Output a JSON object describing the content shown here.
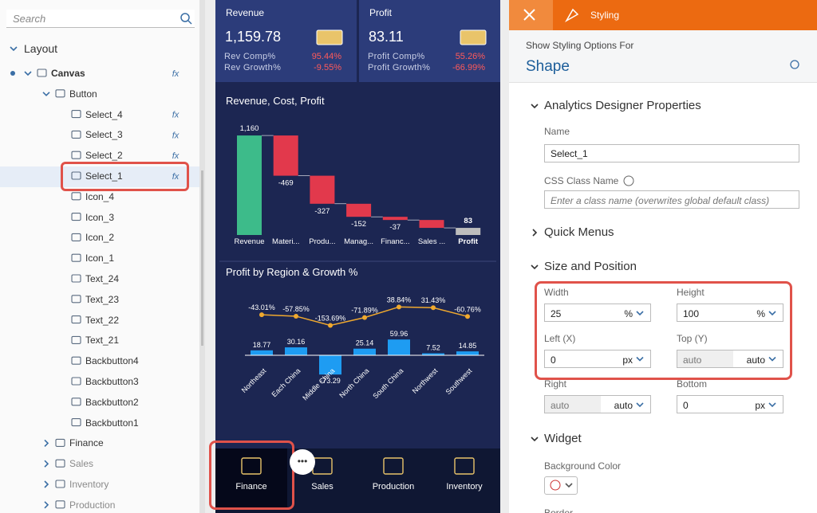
{
  "search": {
    "placeholder": "Search"
  },
  "outline": {
    "title": "Layout",
    "items": [
      "Canvas",
      "Button",
      "Select_4",
      "Select_3",
      "Select_2",
      "Select_1",
      "Icon_4",
      "Icon_3",
      "Icon_2",
      "Icon_1",
      "Text_24",
      "Text_23",
      "Text_22",
      "Text_21",
      "Backbutton4",
      "Backbutton3",
      "Backbutton2",
      "Backbutton1",
      "Finance",
      "Sales",
      "Inventory",
      "Production"
    ]
  },
  "app": {
    "kpis": [
      {
        "title": "Revenue",
        "value": "1,159.78",
        "rows": [
          [
            "Rev Comp%",
            "95.44%"
          ],
          [
            "Rev Growth%",
            "-9.55%"
          ]
        ]
      },
      {
        "title": "Profit",
        "value": "83.11",
        "rows": [
          [
            "Profit Comp%",
            "55.26%"
          ],
          [
            "Profit Growth%",
            "-66.99%"
          ]
        ]
      }
    ],
    "charts": [
      {
        "type": "waterfall",
        "title": "Revenue, Cost, Profit",
        "categories": [
          "Revenue",
          "Materi...",
          "Produ...",
          "Manag...",
          "Financ...",
          "Sales ...",
          "Profit"
        ],
        "values": [
          1160,
          -469,
          -327,
          -152,
          -37,
          -92,
          83
        ],
        "value_labels": [
          "1,160",
          "-469",
          "-327",
          "-152",
          "-37",
          null,
          "83"
        ],
        "ylim": [
          0,
          1300
        ],
        "color_start": "#3dbb8a",
        "color_decrease": "#e2394c",
        "color_end": "#bdbdbd"
      },
      {
        "type": "bar_line",
        "title": "Profit by Region & Growth %",
        "categories": [
          "Northeast",
          "Each China",
          "Middle China",
          "North China",
          "South China",
          "Northwest",
          "Southwest"
        ],
        "ylim": [
          -100,
          100
        ],
        "y2lim": [
          -200,
          100
        ],
        "series": [
          {
            "type": "bar",
            "color": "#1e9cf2",
            "values": [
              18.77,
              30.16,
              -73.29,
              25.14,
              59.96,
              7.52,
              14.85
            ]
          },
          {
            "type": "line",
            "axis": "y2",
            "color": "#f0a92e",
            "values": [
              -43.01,
              -57.85,
              -153.69,
              -71.89,
              38.84,
              31.43,
              -60.76
            ],
            "value_labels": [
              "-43.01%",
              "-57.85%",
              "-153.69%",
              "-71.89%",
              "38.84%",
              "31.43%",
              "-60.76%"
            ]
          }
        ]
      }
    ],
    "nav": [
      "Finance",
      "Sales",
      "Production",
      "Inventory"
    ]
  },
  "styling": {
    "tab": "Styling",
    "show_for": "Show Styling Options For",
    "target": "Shape",
    "adp": {
      "title": "Analytics Designer Properties",
      "name_label": "Name",
      "name_value": "Select_1",
      "css_label": "CSS Class Name",
      "css_placeholder": "Enter a class name (overwrites global default class)"
    },
    "quick_menus": "Quick Menus",
    "size": {
      "title": "Size and Position",
      "fields": [
        {
          "label": "Width",
          "value": "25",
          "unit": "%"
        },
        {
          "label": "Height",
          "value": "100",
          "unit": "%"
        },
        {
          "label": "Left (X)",
          "value": "0",
          "unit": "px"
        },
        {
          "label": "Top (Y)",
          "value": "auto",
          "unit": "auto"
        },
        {
          "label": "Right",
          "value": "auto",
          "unit": "auto"
        },
        {
          "label": "Bottom",
          "value": "0",
          "unit": "px"
        }
      ]
    },
    "widget": {
      "title": "Widget",
      "bg_label": "Background Color",
      "border_label": "Border"
    }
  }
}
